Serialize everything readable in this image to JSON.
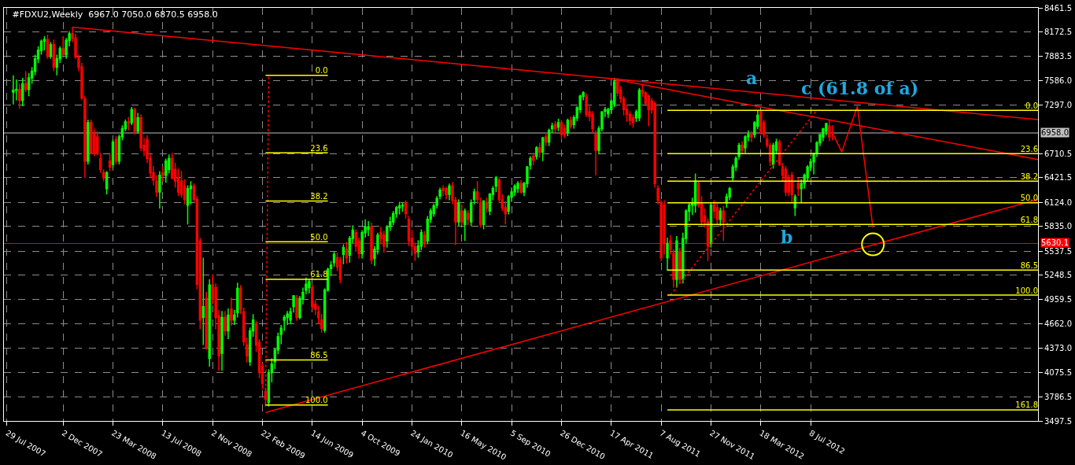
{
  "chart_data": {
    "type": "candlestick",
    "title": "#FDXU2,Weekly  6967.0 7050.0 6870.5 6958.0",
    "colors": [
      "#00ff00",
      "#00ff00",
      "#ff0000",
      "#00ff00",
      "#ff0000",
      "#00ff00",
      "#00ff00",
      "#00ff00",
      "#00ff00",
      "#00ff00",
      "#00ff00",
      "#ff0000",
      "#00ff00",
      "#ff0000",
      "#00ff00",
      "#00ff00",
      "#ff0000",
      "#00ff00",
      "#00ff00",
      "#ff0000",
      "#ff0000",
      "#ff0000",
      "#ff0000",
      "#ff0000",
      "#00ff00",
      "#ff0000",
      "#ff0000",
      "#ff0000",
      "#ff0000",
      "#ff0000",
      "#00ff00",
      "#ff0000",
      "#00ff00",
      "#ff0000",
      "#00ff00",
      "#00ff00",
      "#00ff00",
      "#ff0000",
      "#00ff00",
      "#ff0000",
      "#00ff00",
      "#ff0000",
      "#ff0000",
      "#ff0000",
      "#ff0000",
      "#ff0000",
      "#ff0000",
      "#00ff00",
      "#ff0000",
      "#00ff00",
      "#00ff00",
      "#ff0000",
      "#ff0000",
      "#ff0000",
      "#ff0000",
      "#ff0000",
      "#00ff00",
      "#00ff00",
      "#ff0000",
      "#ff0000",
      "#ff0000",
      "#00ff00",
      "#ff0000",
      "#00ff00",
      "#ff0000",
      "#ff0000",
      "#ff0000",
      "#00ff00",
      "#ff0000",
      "#00ff00",
      "#ff0000",
      "#00ff00",
      "#00ff00",
      "#ff0000",
      "#ff0000",
      "#ff0000",
      "#00ff00",
      "#00ff00",
      "#ff0000",
      "#ff0000",
      "#ff0000",
      "#ff0000",
      "#00ff00",
      "#00ff00",
      "#00ff00",
      "#00ff00",
      "#00ff00",
      "#00ff00",
      "#00ff00",
      "#00ff00",
      "#00ff00",
      "#ff0000",
      "#00ff00",
      "#00ff00",
      "#00ff00",
      "#00ff00",
      "#ff0000",
      "#ff0000",
      "#ff0000",
      "#ff0000",
      "#00ff00",
      "#00ff00",
      "#00ff00",
      "#00ff00",
      "#ff0000",
      "#ff0000",
      "#00ff00",
      "#ff0000",
      "#00ff00",
      "#00ff00",
      "#ff0000",
      "#ff0000",
      "#00ff00",
      "#00ff00",
      "#00ff00",
      "#ff0000",
      "#00ff00",
      "#00ff00",
      "#ff0000",
      "#ff0000",
      "#00ff00",
      "#00ff00",
      "#00ff00",
      "#00ff00",
      "#00ff00",
      "#00ff00",
      "#ff0000",
      "#ff0000",
      "#ff0000",
      "#ff0000",
      "#00ff00",
      "#00ff00",
      "#ff0000",
      "#00ff00",
      "#00ff00",
      "#00ff00",
      "#00ff00",
      "#00ff00",
      "#ff0000",
      "#ff0000",
      "#00ff00",
      "#ff0000",
      "#ff0000",
      "#00ff00",
      "#ff0000",
      "#00ff00",
      "#ff0000",
      "#00ff00",
      "#00ff00",
      "#ff0000",
      "#ff0000",
      "#00ff00",
      "#ff0000",
      "#00ff00",
      "#00ff00",
      "#00ff00",
      "#ff0000",
      "#ff0000",
      "#ff0000",
      "#00ff00",
      "#00ff00",
      "#00ff00",
      "#00ff00",
      "#ff0000",
      "#00ff00",
      "#00ff00",
      "#00ff00",
      "#ff0000",
      "#00ff00",
      "#ff0000",
      "#00ff00",
      "#ff0000",
      "#00ff00",
      "#00ff00",
      "#ff0000",
      "#00ff00",
      "#ff0000",
      "#ff0000",
      "#00ff00",
      "#ff0000",
      "#00ff00",
      "#00ff00",
      "#00ff00",
      "#00ff00",
      "#ff0000",
      "#ff0000",
      "#ff0000",
      "#ff0000",
      "#00ff00",
      "#00ff00",
      "#00ff00",
      "#00ff00",
      "#00ff00",
      "#00ff00",
      "#ff0000",
      "#ff0000",
      "#ff0000",
      "#ff0000",
      "#ff0000",
      "#ff0000",
      "#00ff00",
      "#00ff00",
      "#ff0000",
      "#ff0000",
      "#ff0000",
      "#ff0000",
      "#ff0000",
      "#ff0000",
      "#ff0000",
      "#ff0000",
      "#00ff00",
      "#ff0000",
      "#ff0000",
      "#00ff00",
      "#ff0000",
      "#00ff00",
      "#00ff00",
      "#00ff00",
      "#00ff00",
      "#00ff00",
      "#ff0000",
      "#ff0000",
      "#ff0000",
      "#ff0000",
      "#00ff00",
      "#ff0000",
      "#ff0000",
      "#00ff00",
      "#ff0000",
      "#00ff00",
      "#00ff00",
      "#00ff00",
      "#00ff00",
      "#00ff00",
      "#ff0000",
      "#00ff00",
      "#00ff00",
      "#ff0000",
      "#00ff00",
      "#00ff00",
      "#ff0000",
      "#ff0000",
      "#ff0000",
      "#ff0000",
      "#00ff00",
      "#00ff00",
      "#ff0000",
      "#ff0000",
      "#ff0000",
      "#ff0000",
      "#ff0000",
      "#00ff00",
      "#ff0000",
      "#00ff00",
      "#00ff00",
      "#00ff00",
      "#00ff00",
      "#00ff00",
      "#00ff00",
      "#00ff00",
      "#00ff00",
      "#00ff00",
      "#ff0000",
      "#ff0000"
    ],
    "x": [
      "2007-08-12",
      "2007-08-19",
      "2007-08-26",
      "2007-09-02",
      "2007-09-09",
      "2007-09-16",
      "2007-09-23",
      "2007-09-30",
      "2007-10-07",
      "2007-10-14",
      "2007-10-21",
      "2007-10-28",
      "2007-11-04",
      "2007-11-11",
      "2007-11-18",
      "2007-11-25",
      "2007-12-02",
      "2007-12-09",
      "2007-12-16",
      "2007-12-23",
      "2007-12-30",
      "2008-01-06",
      "2008-01-13",
      "2008-01-20",
      "2008-01-27",
      "2008-02-03",
      "2008-02-10",
      "2008-02-17",
      "2008-02-24",
      "2008-03-02",
      "2008-03-09",
      "2008-03-16",
      "2008-03-23",
      "2008-03-30",
      "2008-04-06",
      "2008-04-13",
      "2008-04-20",
      "2008-04-27",
      "2008-05-04",
      "2008-05-11",
      "2008-05-18",
      "2008-05-25",
      "2008-06-01",
      "2008-06-08",
      "2008-06-15",
      "2008-06-22",
      "2008-06-29",
      "2008-07-06",
      "2008-07-13",
      "2008-07-20",
      "2008-07-27",
      "2008-08-03",
      "2008-08-10",
      "2008-08-17",
      "2008-08-24",
      "2008-08-31",
      "2008-09-07",
      "2008-09-14",
      "2008-09-21",
      "2008-09-28",
      "2008-10-05",
      "2008-10-12",
      "2008-10-19",
      "2008-10-26",
      "2008-11-02",
      "2008-11-09",
      "2008-11-16",
      "2008-11-23",
      "2008-11-30",
      "2008-12-07",
      "2008-12-14",
      "2008-12-21",
      "2008-12-28",
      "2009-01-04",
      "2009-01-11",
      "2009-01-18",
      "2009-01-25",
      "2009-02-01",
      "2009-02-08",
      "2009-02-15",
      "2009-02-22",
      "2009-03-01",
      "2009-03-08",
      "2009-03-15",
      "2009-03-22",
      "2009-03-29",
      "2009-04-05",
      "2009-04-12",
      "2009-04-19",
      "2009-04-26",
      "2009-05-03",
      "2009-05-10",
      "2009-05-17",
      "2009-05-24",
      "2009-05-31",
      "2009-06-07",
      "2009-06-14",
      "2009-06-21",
      "2009-06-28",
      "2009-07-05",
      "2009-07-12",
      "2009-07-19",
      "2009-07-26",
      "2009-08-02",
      "2009-08-09",
      "2009-08-16",
      "2009-08-23",
      "2009-08-30",
      "2009-09-06",
      "2009-09-13",
      "2009-09-20",
      "2009-09-27",
      "2009-10-04",
      "2009-10-11",
      "2009-10-18",
      "2009-10-25",
      "2009-11-01",
      "2009-11-08",
      "2009-11-15",
      "2009-11-22",
      "2009-11-29",
      "2009-12-06",
      "2009-12-13",
      "2009-12-20",
      "2009-12-27",
      "2010-01-03",
      "2010-01-10",
      "2010-01-17",
      "2010-01-24",
      "2010-01-31",
      "2010-02-07",
      "2010-02-14",
      "2010-02-21",
      "2010-02-28",
      "2010-03-07",
      "2010-03-14",
      "2010-03-21",
      "2010-03-28",
      "2010-04-04",
      "2010-04-11",
      "2010-04-18",
      "2010-04-25",
      "2010-05-02",
      "2010-05-09",
      "2010-05-16",
      "2010-05-23",
      "2010-05-30",
      "2010-06-06",
      "2010-06-13",
      "2010-06-20",
      "2010-06-27",
      "2010-07-04",
      "2010-07-11",
      "2010-07-18",
      "2010-07-25",
      "2010-08-01",
      "2010-08-08",
      "2010-08-15",
      "2010-08-22",
      "2010-08-29",
      "2010-09-05",
      "2010-09-12",
      "2010-09-19",
      "2010-09-26",
      "2010-10-03",
      "2010-10-10",
      "2010-10-17",
      "2010-10-24",
      "2010-10-31",
      "2010-11-07",
      "2010-11-14",
      "2010-11-21",
      "2010-11-28",
      "2010-12-05",
      "2010-12-12",
      "2010-12-19",
      "2010-12-26",
      "2011-01-02",
      "2011-01-09",
      "2011-01-16",
      "2011-01-23",
      "2011-01-30",
      "2011-02-06",
      "2011-02-13",
      "2011-02-20",
      "2011-02-27",
      "2011-03-06",
      "2011-03-13",
      "2011-03-20",
      "2011-03-27",
      "2011-04-03",
      "2011-04-10",
      "2011-04-17",
      "2011-04-24",
      "2011-05-01",
      "2011-05-08",
      "2011-05-15",
      "2011-05-22",
      "2011-05-29",
      "2011-06-05",
      "2011-06-12",
      "2011-06-19",
      "2011-06-26",
      "2011-07-03",
      "2011-07-10",
      "2011-07-17",
      "2011-07-24",
      "2011-07-31",
      "2011-08-07",
      "2011-08-14",
      "2011-08-21",
      "2011-08-28",
      "2011-09-04",
      "2011-09-11",
      "2011-09-18",
      "2011-09-25",
      "2011-10-02",
      "2011-10-09",
      "2011-10-16",
      "2011-10-23",
      "2011-10-30",
      "2011-11-06",
      "2011-11-13",
      "2011-11-20",
      "2011-11-27",
      "2011-12-04",
      "2011-12-11",
      "2011-12-18",
      "2011-12-25",
      "2012-01-01",
      "2012-01-08",
      "2012-01-15",
      "2012-01-22",
      "2012-01-29",
      "2012-02-05",
      "2012-02-12",
      "2012-02-19",
      "2012-02-26",
      "2012-03-04",
      "2012-03-11",
      "2012-03-18",
      "2012-03-25",
      "2012-04-01",
      "2012-04-08",
      "2012-04-15",
      "2012-04-22",
      "2012-04-29",
      "2012-05-06",
      "2012-05-13",
      "2012-05-20",
      "2012-05-27",
      "2012-06-03",
      "2012-06-10",
      "2012-06-17",
      "2012-06-24",
      "2012-07-01",
      "2012-07-08",
      "2012-07-15",
      "2012-07-22",
      "2012-07-29",
      "2012-08-05",
      "2012-08-12",
      "2012-08-19",
      "2012-08-26"
    ],
    "ohlc": [
      [
        7450,
        7650,
        7300,
        7470
      ],
      [
        7470,
        7600,
        7350,
        7480
      ],
      [
        7480,
        7550,
        7250,
        7350
      ],
      [
        7350,
        7620,
        7280,
        7550
      ],
      [
        7550,
        7700,
        7450,
        7480
      ],
      [
        7480,
        7680,
        7400,
        7620
      ],
      [
        7620,
        7750,
        7550,
        7700
      ],
      [
        7700,
        7900,
        7650,
        7850
      ],
      [
        7850,
        8000,
        7800,
        7950
      ],
      [
        7950,
        8080,
        7900,
        8060
      ],
      [
        8060,
        8120,
        7950,
        8080
      ],
      [
        8080,
        8140,
        7850,
        7880
      ],
      [
        7880,
        8050,
        7850,
        8020
      ],
      [
        8020,
        8080,
        7700,
        7750
      ],
      [
        7750,
        7900,
        7650,
        7850
      ],
      [
        7850,
        8000,
        7800,
        7970
      ],
      [
        7970,
        8120,
        7880,
        7900
      ],
      [
        7900,
        8100,
        7850,
        8070
      ],
      [
        8070,
        8180,
        8000,
        8150
      ],
      [
        8150,
        8230,
        8050,
        8100
      ],
      [
        8100,
        8150,
        7850,
        7870
      ],
      [
        7870,
        7900,
        7700,
        7750
      ],
      [
        7750,
        7800,
        7350,
        7380
      ],
      [
        7370,
        7400,
        6420,
        6620
      ],
      [
        6620,
        7120,
        6580,
        7080
      ],
      [
        7080,
        7120,
        6700,
        6710
      ],
      [
        6940,
        7010,
        6680,
        6710
      ],
      [
        6910,
        6980,
        6690,
        6710
      ],
      [
        6650,
        6720,
        6480,
        6520
      ],
      [
        6480,
        6520,
        6380,
        6420
      ],
      [
        6290,
        6500,
        6220,
        6480
      ],
      [
        6620,
        6700,
        6500,
        6550
      ],
      [
        6580,
        6880,
        6530,
        6850
      ],
      [
        6880,
        6920,
        6580,
        6620
      ],
      [
        6620,
        6940,
        6580,
        6910
      ],
      [
        6910,
        7050,
        6870,
        7010
      ],
      [
        7010,
        7120,
        6980,
        7090
      ],
      [
        7090,
        7150,
        6990,
        7080
      ],
      [
        7080,
        7270,
        7050,
        7240
      ],
      [
        7240,
        7260,
        6940,
        6980
      ],
      [
        6980,
        7200,
        6950,
        7140
      ],
      [
        7140,
        7180,
        6740,
        6780
      ],
      [
        6810,
        6900,
        6680,
        6750
      ],
      [
        6880,
        6930,
        6600,
        6650
      ],
      [
        6650,
        6700,
        6420,
        6480
      ],
      [
        6480,
        6560,
        6330,
        6390
      ],
      [
        6380,
        6450,
        6190,
        6250
      ],
      [
        6250,
        6500,
        6050,
        6450
      ],
      [
        6480,
        6560,
        6380,
        6450
      ],
      [
        6450,
        6650,
        6360,
        6620
      ],
      [
        6520,
        6700,
        6470,
        6650
      ],
      [
        6650,
        6720,
        6400,
        6420
      ],
      [
        6520,
        6600,
        6300,
        6380
      ],
      [
        6420,
        6530,
        6200,
        6250
      ],
      [
        6380,
        6500,
        6180,
        6220
      ],
      [
        6320,
        6400,
        6100,
        6160
      ],
      [
        6090,
        6330,
        5860,
        6290
      ],
      [
        6290,
        6380,
        6100,
        6320
      ],
      [
        6320,
        6350,
        6130,
        6160
      ],
      [
        6160,
        6200,
        5080,
        5140
      ],
      [
        5660,
        5700,
        4600,
        4710
      ],
      [
        4740,
        5460,
        4410,
        4870
      ],
      [
        4970,
        5050,
        4350,
        4380
      ],
      [
        4250,
        5200,
        4150,
        5130
      ],
      [
        5130,
        5260,
        4900,
        4960
      ],
      [
        5100,
        5150,
        4600,
        4740
      ],
      [
        4760,
        4830,
        4100,
        4280
      ],
      [
        4310,
        4820,
        4100,
        4740
      ],
      [
        4740,
        4820,
        4520,
        4580
      ],
      [
        4580,
        4850,
        4480,
        4770
      ],
      [
        4840,
        4980,
        4640,
        4710
      ],
      [
        4710,
        4830,
        4650,
        4770
      ],
      [
        4800,
        5160,
        4740,
        5090
      ],
      [
        5090,
        5130,
        4780,
        4840
      ],
      [
        4810,
        4860,
        4400,
        4450
      ],
      [
        4410,
        4500,
        4200,
        4280
      ],
      [
        4210,
        4620,
        4160,
        4580
      ],
      [
        4580,
        4780,
        4510,
        4710
      ],
      [
        4670,
        4700,
        4330,
        4410
      ],
      [
        4440,
        4480,
        4010,
        4080
      ],
      [
        4150,
        4190,
        3880,
        3950
      ],
      [
        3850,
        3900,
        3670,
        3760
      ],
      [
        3720,
        4120,
        3670,
        4080
      ],
      [
        4080,
        4250,
        3960,
        4180
      ],
      [
        4210,
        4370,
        4120,
        4350
      ],
      [
        4350,
        4560,
        4300,
        4510
      ],
      [
        4540,
        4650,
        4420,
        4610
      ],
      [
        4710,
        4770,
        4580,
        4740
      ],
      [
        4740,
        4820,
        4650,
        4780
      ],
      [
        4710,
        4860,
        4660,
        4810
      ],
      [
        4870,
        5010,
        4800,
        5000
      ],
      [
        4970,
        5010,
        4700,
        4740
      ],
      [
        4740,
        5000,
        4720,
        4970
      ],
      [
        4970,
        5100,
        4900,
        5040
      ],
      [
        5070,
        5220,
        5020,
        5140
      ],
      [
        5100,
        5200,
        5030,
        5170
      ],
      [
        5100,
        5140,
        4840,
        4870
      ],
      [
        4900,
        4950,
        4770,
        4840
      ],
      [
        4810,
        4880,
        4660,
        4740
      ],
      [
        4710,
        4780,
        4560,
        4610
      ],
      [
        4590,
        5090,
        4560,
        5070
      ],
      [
        5070,
        5340,
        5050,
        5320
      ],
      [
        5330,
        5420,
        5240,
        5370
      ],
      [
        5400,
        5530,
        5350,
        5500
      ],
      [
        5460,
        5520,
        5300,
        5350
      ],
      [
        5430,
        5470,
        5150,
        5200
      ],
      [
        5500,
        5620,
        5380,
        5580
      ],
      [
        5560,
        5650,
        5390,
        5460
      ],
      [
        5490,
        5720,
        5400,
        5690
      ],
      [
        5690,
        5850,
        5630,
        5790
      ],
      [
        5760,
        5800,
        5530,
        5600
      ],
      [
        5660,
        5700,
        5450,
        5510
      ],
      [
        5510,
        5790,
        5450,
        5760
      ],
      [
        5760,
        5920,
        5700,
        5830
      ],
      [
        5800,
        5900,
        5720,
        5830
      ],
      [
        5830,
        5880,
        5380,
        5430
      ],
      [
        5450,
        5600,
        5360,
        5560
      ],
      [
        5560,
        5760,
        5500,
        5730
      ],
      [
        5760,
        5830,
        5620,
        5690
      ],
      [
        5730,
        5780,
        5520,
        5600
      ],
      [
        5660,
        5850,
        5580,
        5830
      ],
      [
        5830,
        5950,
        5780,
        5890
      ],
      [
        5890,
        6020,
        5850,
        5990
      ],
      [
        5990,
        6080,
        5940,
        6060
      ],
      [
        6060,
        6130,
        5980,
        6080
      ],
      [
        6080,
        6120,
        6010,
        6090
      ],
      [
        6120,
        6150,
        5930,
        5990
      ],
      [
        5920,
        5960,
        5600,
        5660
      ],
      [
        5690,
        5790,
        5540,
        5600
      ],
      [
        5590,
        5640,
        5420,
        5510
      ],
      [
        5530,
        5670,
        5460,
        5600
      ],
      [
        5600,
        5800,
        5550,
        5760
      ],
      [
        5730,
        5780,
        5580,
        5630
      ],
      [
        5660,
        5960,
        5620,
        5920
      ],
      [
        5920,
        6050,
        5880,
        6020
      ],
      [
        5990,
        6110,
        5950,
        6080
      ],
      [
        6090,
        6200,
        6050,
        6170
      ],
      [
        6200,
        6300,
        6160,
        6270
      ],
      [
        6290,
        6330,
        6200,
        6270
      ],
      [
        6290,
        6310,
        6160,
        6220
      ],
      [
        6220,
        6350,
        6150,
        6320
      ],
      [
        6320,
        6370,
        6100,
        6150
      ],
      [
        6150,
        6190,
        5610,
        5890
      ],
      [
        5890,
        6160,
        5840,
        6120
      ],
      [
        6020,
        6100,
        5850,
        5890
      ],
      [
        5860,
        6050,
        5660,
        6020
      ],
      [
        5990,
        6030,
        5850,
        5920
      ],
      [
        5890,
        6160,
        5840,
        6120
      ],
      [
        6160,
        6290,
        6100,
        6250
      ],
      [
        6250,
        6380,
        6110,
        6160
      ],
      [
        6120,
        6180,
        5820,
        5860
      ],
      [
        5860,
        6150,
        5800,
        6140
      ],
      [
        6120,
        6180,
        6000,
        6060
      ],
      [
        6020,
        6240,
        5970,
        6220
      ],
      [
        6220,
        6320,
        6150,
        6290
      ],
      [
        6320,
        6440,
        6250,
        6420
      ],
      [
        6390,
        6420,
        6120,
        6160
      ],
      [
        6160,
        6220,
        6020,
        6060
      ],
      [
        6060,
        6140,
        5860,
        5990
      ],
      [
        6020,
        6210,
        5980,
        6190
      ],
      [
        6190,
        6300,
        6130,
        6250
      ],
      [
        6250,
        6340,
        6200,
        6320
      ],
      [
        6290,
        6380,
        6240,
        6350
      ],
      [
        6350,
        6390,
        6230,
        6250
      ],
      [
        6250,
        6370,
        6200,
        6350
      ],
      [
        6350,
        6560,
        6300,
        6550
      ],
      [
        6570,
        6680,
        6520,
        6650
      ],
      [
        6680,
        6720,
        6570,
        6630
      ],
      [
        6680,
        6800,
        6640,
        6780
      ],
      [
        6780,
        6840,
        6660,
        6730
      ],
      [
        6730,
        6910,
        6620,
        6900
      ],
      [
        6910,
        6960,
        6800,
        6850
      ],
      [
        6850,
        7010,
        6800,
        6990
      ],
      [
        7010,
        7080,
        6960,
        7040
      ],
      [
        7060,
        7100,
        6950,
        7010
      ],
      [
        7030,
        7130,
        6980,
        7080
      ],
      [
        7080,
        7110,
        6880,
        6940
      ],
      [
        7010,
        7060,
        6900,
        6940
      ],
      [
        6960,
        7130,
        6920,
        7110
      ],
      [
        7110,
        7160,
        7010,
        7040
      ],
      [
        7060,
        7170,
        7010,
        7140
      ],
      [
        7140,
        7280,
        7100,
        7260
      ],
      [
        7240,
        7420,
        7200,
        7400
      ],
      [
        7400,
        7460,
        7350,
        7440
      ],
      [
        7400,
        7430,
        7150,
        7180
      ],
      [
        7210,
        7280,
        7100,
        7160
      ],
      [
        7180,
        7220,
        6960,
        7010
      ],
      [
        6940,
        6990,
        6450,
        6750
      ],
      [
        6750,
        7040,
        6700,
        7010
      ],
      [
        7010,
        7220,
        6980,
        7210
      ],
      [
        7220,
        7270,
        7150,
        7240
      ],
      [
        7190,
        7260,
        7140,
        7240
      ],
      [
        7240,
        7360,
        7190,
        7340
      ],
      [
        7310,
        7620,
        7270,
        7570
      ],
      [
        7600,
        7620,
        7400,
        7440
      ],
      [
        7470,
        7520,
        7320,
        7370
      ],
      [
        7370,
        7400,
        7170,
        7240
      ],
      [
        7240,
        7300,
        7090,
        7180
      ],
      [
        7180,
        7220,
        7050,
        7110
      ],
      [
        7140,
        7180,
        7020,
        7080
      ],
      [
        7140,
        7240,
        7090,
        7210
      ],
      [
        7140,
        7500,
        7100,
        7470
      ],
      [
        7470,
        7550,
        7390,
        7440
      ],
      [
        7440,
        7460,
        7280,
        7310
      ],
      [
        7400,
        7420,
        7040,
        7240
      ],
      [
        7340,
        7380,
        7190,
        7240
      ],
      [
        7310,
        7340,
        6300,
        6350
      ],
      [
        6290,
        6330,
        6100,
        6150
      ],
      [
        6120,
        6150,
        5420,
        5460
      ],
      [
        6090,
        6150,
        5500,
        5630
      ],
      [
        5460,
        5700,
        5300,
        5630
      ],
      [
        5660,
        5730,
        5500,
        5560
      ],
      [
        5510,
        5560,
        5100,
        5200
      ],
      [
        5200,
        5720,
        5100,
        5660
      ],
      [
        5530,
        5580,
        5160,
        5200
      ],
      [
        5200,
        5760,
        5150,
        5690
      ],
      [
        5690,
        6040,
        5630,
        6020
      ],
      [
        6020,
        6120,
        5900,
        6090
      ],
      [
        6090,
        6180,
        5970,
        6120
      ],
      [
        6090,
        6470,
        6000,
        6380
      ],
      [
        6350,
        6380,
        6060,
        6090
      ],
      [
        6120,
        6200,
        5850,
        5890
      ],
      [
        5960,
        6050,
        5820,
        5890
      ],
      [
        5890,
        5930,
        5420,
        5600
      ],
      [
        5630,
        6120,
        5580,
        6090
      ],
      [
        6090,
        6150,
        5930,
        6020
      ],
      [
        6060,
        6110,
        5860,
        5920
      ],
      [
        5920,
        6060,
        5840,
        6020
      ],
      [
        6020,
        6080,
        5660,
        5890
      ],
      [
        6120,
        6230,
        6060,
        6190
      ],
      [
        6190,
        6310,
        6150,
        6290
      ],
      [
        6420,
        6580,
        6380,
        6550
      ],
      [
        6550,
        6680,
        6500,
        6650
      ],
      [
        6680,
        6840,
        6640,
        6810
      ],
      [
        6810,
        6860,
        6700,
        6750
      ],
      [
        6780,
        6930,
        6720,
        6910
      ],
      [
        6910,
        6990,
        6860,
        6940
      ],
      [
        6940,
        6980,
        6850,
        6910
      ],
      [
        6940,
        7100,
        6900,
        7080
      ],
      [
        7040,
        7230,
        7000,
        7170
      ],
      [
        7210,
        7230,
        6940,
        6980
      ],
      [
        7080,
        7120,
        6900,
        6940
      ],
      [
        6880,
        6940,
        6780,
        6810
      ],
      [
        6810,
        6840,
        6560,
        6620
      ],
      [
        6580,
        6840,
        6530,
        6810
      ],
      [
        6750,
        6890,
        6700,
        6850
      ],
      [
        6850,
        6880,
        6560,
        6580
      ],
      [
        6550,
        6600,
        6380,
        6450
      ],
      [
        6520,
        6560,
        6200,
        6250
      ],
      [
        6420,
        6460,
        6200,
        6250
      ],
      [
        6450,
        6490,
        6120,
        6220
      ],
      [
        6060,
        6220,
        5960,
        6190
      ],
      [
        6350,
        6420,
        6200,
        6290
      ],
      [
        6290,
        6400,
        6120,
        6350
      ],
      [
        6350,
        6470,
        6290,
        6450
      ],
      [
        6420,
        6570,
        6380,
        6550
      ],
      [
        6550,
        6650,
        6500,
        6610
      ],
      [
        6610,
        6720,
        6460,
        6710
      ],
      [
        6710,
        6860,
        6670,
        6840
      ],
      [
        6840,
        6940,
        6800,
        6940
      ],
      [
        6910,
        7020,
        6860,
        7010
      ],
      [
        6980,
        7080,
        6930,
        7070
      ],
      [
        7040,
        7110,
        6860,
        6910
      ],
      [
        6967.0,
        7050.0,
        6870.5,
        6958.0
      ]
    ],
    "xlim": [
      "2007-07-22",
      "2013-12-01"
    ],
    "xticks": [
      {
        "value": "2007-07-29",
        "label": "29 Jul 2007"
      },
      {
        "value": "2007-12-02",
        "label": "2 Dec 2007"
      },
      {
        "value": "2008-03-23",
        "label": "23 Mar 2008"
      },
      {
        "value": "2008-07-13",
        "label": "13 Jul 2008"
      },
      {
        "value": "2008-11-02",
        "label": "2 Nov 2008"
      },
      {
        "value": "2009-02-22",
        "label": "22 Feb 2009"
      },
      {
        "value": "2009-06-14",
        "label": "14 Jun 2009"
      },
      {
        "value": "2009-10-04",
        "label": "4 Oct 2009"
      },
      {
        "value": "2010-01-24",
        "label": "24 Jan 2010"
      },
      {
        "value": "2010-05-16",
        "label": "16 May 2010"
      },
      {
        "value": "2010-09-05",
        "label": "5 Sep 2010"
      },
      {
        "value": "2010-12-26",
        "label": "26 Dec 2010"
      },
      {
        "value": "2011-04-17",
        "label": "17 Apr 2011"
      },
      {
        "value": "2011-08-07",
        "label": "7 Aug 2011"
      },
      {
        "value": "2011-11-27",
        "label": "27 Nov 2011"
      },
      {
        "value": "2012-03-18",
        "label": "18 Mar 2012"
      },
      {
        "value": "2012-07-08",
        "label": "8 Jul 2012"
      }
    ],
    "ylim": [
      3497.5,
      8461.5
    ],
    "yticks": [
      {
        "value": 3497.5,
        "label": "3497.5"
      },
      {
        "value": 3786.5,
        "label": "3786.5"
      },
      {
        "value": 4075.5,
        "label": "4075.5"
      },
      {
        "value": 4373,
        "label": "4373.0"
      },
      {
        "value": 4662,
        "label": "4662.0"
      },
      {
        "value": 4959.5,
        "label": "4959.5"
      },
      {
        "value": 5248.5,
        "label": "5248.5"
      },
      {
        "value": 5537.5,
        "label": "5537.5"
      },
      {
        "value": 5835,
        "label": "5835.0"
      },
      {
        "value": 6124,
        "label": "6124.0"
      },
      {
        "value": 6421.5,
        "label": "6421.5"
      },
      {
        "value": 6710.5,
        "label": "6710.5"
      },
      {
        "value": 7297,
        "label": "7297.0"
      },
      {
        "value": 7586,
        "label": "7586.0"
      },
      {
        "value": 7883.5,
        "label": "7883.5"
      },
      {
        "value": 8172.5,
        "label": "8172.5"
      },
      {
        "value": 8461.5,
        "label": "8461.5"
      }
    ],
    "grid": true,
    "ref_lines": [
      {
        "axis": "y",
        "value": 6958.0,
        "label": "6958.0",
        "color": "#c0c0c0"
      },
      {
        "axis": "y",
        "value": 5630.1,
        "label": "5630.1",
        "color": "#ff0000"
      }
    ],
    "series": [
      {
        "type": "line",
        "color": "#ff0000",
        "x": [
          "2007-12-23",
          "2013-12-01"
        ],
        "values": [
          8230,
          7120
        ]
      },
      {
        "type": "line",
        "color": "#ff0000",
        "x": [
          "2009-03-01",
          "2013-12-01"
        ],
        "values": [
          3600,
          6160
        ]
      },
      {
        "type": "line",
        "color": "#ff0000",
        "x": [
          "2011-04-17",
          "2013-12-01"
        ],
        "values": [
          7610,
          6640
        ]
      },
      {
        "type": "line",
        "color": "#ff0000",
        "line_style": "dotted",
        "x": [
          "2009-03-01",
          "2009-03-08"
        ],
        "values": [
          3690,
          7650
        ]
      },
      {
        "type": "line",
        "color": "#ff0000",
        "line_style": "dotted",
        "x": [
          "2011-08-28",
          "2012-07-22"
        ],
        "values": [
          5010,
          7230
        ]
      },
      {
        "type": "line",
        "color": "#ff0000",
        "x": [
          "2012-08-26",
          "2012-09-16",
          "2012-10-21",
          "2012-11-25"
        ],
        "values": [
          6960,
          6730,
          7280,
          5820
        ]
      },
      {
        "type": "scatter",
        "marker": "circle",
        "color": "#ffff00",
        "x": [
          "2012-11-25"
        ],
        "values": [
          5620
        ]
      },
      {
        "type": "line",
        "name": "0.0",
        "color": "#ffff00",
        "x": [
          "2009-03-01",
          "2009-07-19"
        ],
        "values": [
          7650,
          7650
        ]
      },
      {
        "type": "line",
        "name": "23.6",
        "color": "#ffff00",
        "x": [
          "2009-03-01",
          "2009-07-19"
        ],
        "values": [
          6720,
          6720
        ]
      },
      {
        "type": "line",
        "name": "38.2",
        "color": "#ffff00",
        "x": [
          "2009-03-01",
          "2009-07-19"
        ],
        "values": [
          6140,
          6140
        ]
      },
      {
        "type": "line",
        "name": "50.0",
        "color": "#ffff00",
        "x": [
          "2009-03-01",
          "2009-07-19"
        ],
        "values": [
          5650,
          5650
        ]
      },
      {
        "type": "line",
        "name": "61.8",
        "color": "#ffff00",
        "x": [
          "2009-03-01",
          "2009-07-19"
        ],
        "values": [
          5200,
          5200
        ]
      },
      {
        "type": "line",
        "name": "86.5",
        "color": "#ffff00",
        "x": [
          "2009-03-01",
          "2009-07-19"
        ],
        "values": [
          4230,
          4230
        ]
      },
      {
        "type": "line",
        "name": "100.0",
        "color": "#ffff00",
        "x": [
          "2009-03-01",
          "2009-07-19"
        ],
        "values": [
          3690,
          3690
        ]
      },
      {
        "type": "line",
        "name": "0.0",
        "color": "#ffff00",
        "x": [
          "2011-08-21",
          "2013-12-01"
        ],
        "values": [
          7230,
          7230
        ]
      },
      {
        "type": "line",
        "name": "23.6",
        "color": "#ffff00",
        "x": [
          "2011-08-21",
          "2013-12-01"
        ],
        "values": [
          6710,
          6710
        ]
      },
      {
        "type": "line",
        "name": "38.2",
        "color": "#ffff00",
        "x": [
          "2011-08-21",
          "2013-12-01"
        ],
        "values": [
          6380,
          6380
        ]
      },
      {
        "type": "line",
        "name": "50.0",
        "color": "#ffff00",
        "x": [
          "2011-08-21",
          "2013-12-01"
        ],
        "values": [
          6120,
          6120
        ]
      },
      {
        "type": "line",
        "name": "61.8",
        "color": "#ffff00",
        "x": [
          "2011-08-21",
          "2013-12-01"
        ],
        "values": [
          5860,
          5860
        ]
      },
      {
        "type": "line",
        "name": "86.5",
        "color": "#ffff00",
        "x": [
          "2011-08-21",
          "2013-12-01"
        ],
        "values": [
          5310,
          5310
        ]
      },
      {
        "type": "line",
        "name": "100.0",
        "color": "#ffff00",
        "x": [
          "2011-08-21",
          "2013-12-01"
        ],
        "values": [
          5010,
          5010
        ]
      },
      {
        "type": "line",
        "name": "161.8",
        "color": "#ffff00",
        "x": [
          "2011-08-21",
          "2013-12-01"
        ],
        "values": [
          3630,
          3630
        ]
      }
    ],
    "annotations": [
      "a",
      "b",
      "c (61.8 of a)"
    ]
  }
}
